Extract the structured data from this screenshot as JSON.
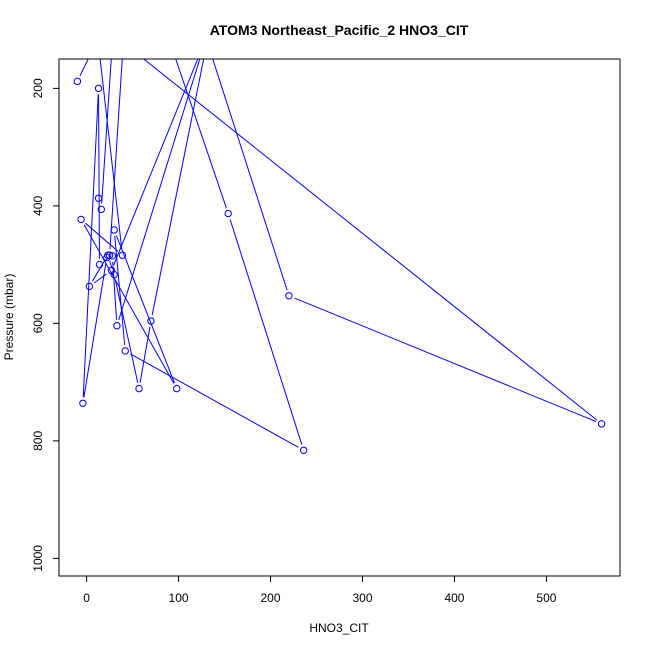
{
  "chart_data": {
    "type": "line",
    "title": "ATOM3 Northeast_Pacific_2 HNO3_CIT",
    "xlabel": "HNO3_CIT",
    "ylabel": "Pressure (mbar)",
    "xlim": [
      -30,
      580
    ],
    "ylim": [
      1030,
      150
    ],
    "y_reversed": true,
    "x_ticks": [
      0,
      100,
      200,
      300,
      400,
      500
    ],
    "y_ticks": [
      200,
      400,
      600,
      800,
      1000
    ],
    "grid": false,
    "legend": "none",
    "series_color": "#0000ff",
    "series": [
      {
        "x": [
          -10,
          14,
          85,
          154,
          236,
          42,
          30,
          98,
          -6,
          39,
          10,
          560,
          220,
          130,
          27,
          3,
          23,
          30,
          57,
          70,
          135,
          33,
          28,
          14,
          13,
          -4,
          22,
          25,
          40,
          30,
          16,
          13
        ],
        "y": [
          188,
          110,
          95,
          413,
          816,
          647,
          441,
          711,
          423,
          484,
          85,
          771,
          553,
          115,
          510,
          537,
          484,
          517,
          711,
          596,
          90,
          604,
          485,
          500,
          200,
          736,
          488,
          484,
          120,
          75,
          406,
          387
        ]
      }
    ]
  }
}
